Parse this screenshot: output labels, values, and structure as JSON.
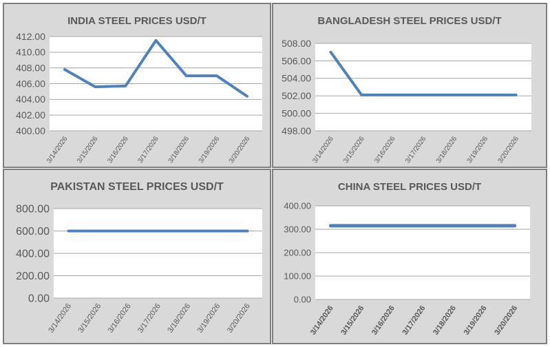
{
  "colors": {
    "panel_bg": "#d9d9d9",
    "plot_bg": "#ffffff",
    "line": "#4f81bd",
    "grid": "#a6a6a6",
    "text": "#595959",
    "border": "#7f7f7f"
  },
  "chart_data": [
    {
      "type": "line",
      "title": "INDIA STEEL PRICES USD/T",
      "categories": [
        "3/14/2026",
        "3/15/2026",
        "3/16/2026",
        "3/17/2026",
        "3/18/2026",
        "3/19/2026",
        "3/20/2026"
      ],
      "values": [
        407.8,
        405.6,
        405.7,
        411.5,
        407.0,
        407.0,
        404.4
      ],
      "ylim": [
        400,
        412
      ],
      "yticks": [
        "400.00",
        "402.00",
        "404.00",
        "406.00",
        "408.00",
        "410.00",
        "412.00"
      ],
      "grid": true
    },
    {
      "type": "line",
      "title": "BANGLADESH STEEL PRICES USD/T",
      "categories": [
        "3/14/2026",
        "3/15/2026",
        "3/16/2026",
        "3/17/2026",
        "3/18/2026",
        "3/19/2026",
        "3/20/2026"
      ],
      "values": [
        507.0,
        502.1,
        502.1,
        502.1,
        502.1,
        502.1,
        502.1
      ],
      "ylim": [
        498,
        508
      ],
      "yticks": [
        "498.00",
        "500.00",
        "502.00",
        "504.00",
        "506.00",
        "508.00"
      ],
      "grid": true
    },
    {
      "type": "line",
      "title": "PAKISTAN STEEL PRICES USD/T",
      "categories": [
        "3/14/2026",
        "3/15/2026",
        "3/16/2026",
        "3/17/2026",
        "3/18/2026",
        "3/19/2026",
        "3/20/2026"
      ],
      "values": [
        600,
        600,
        600,
        600,
        600,
        600,
        600
      ],
      "ylim": [
        0,
        800
      ],
      "yticks": [
        "0.00",
        "200.00",
        "400.00",
        "600.00",
        "800.00"
      ],
      "grid": true
    },
    {
      "type": "line",
      "title": "CHINA STEEL PRICES USD/T",
      "categories": [
        "3/14/2026",
        "3/15/2026",
        "3/16/2026",
        "3/17/2026",
        "3/18/2026",
        "3/19/2026",
        "3/20/2026"
      ],
      "values": [
        315,
        315,
        315,
        315,
        315,
        315,
        315
      ],
      "ylim": [
        0,
        400
      ],
      "yticks": [
        "0.00",
        "100.00",
        "200.00",
        "300.00",
        "400.00"
      ],
      "grid": true
    }
  ]
}
